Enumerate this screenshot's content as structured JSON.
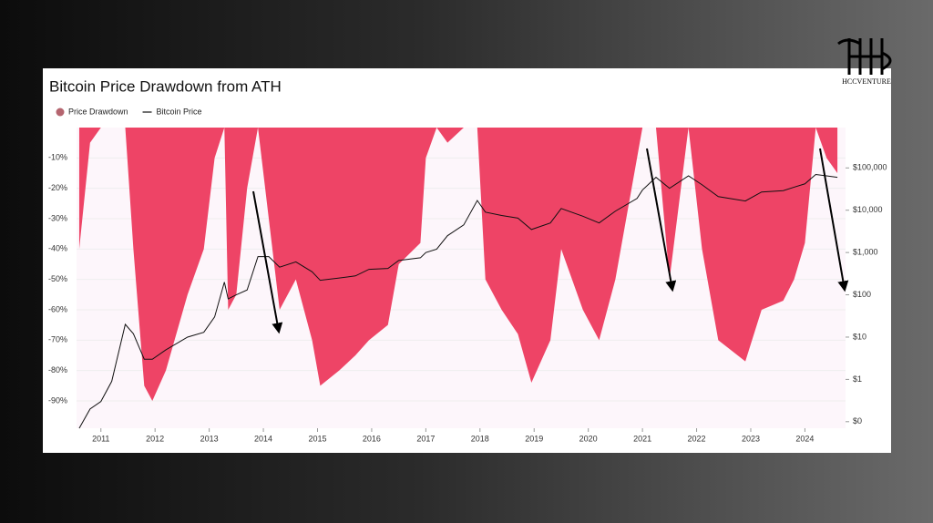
{
  "watermark": "HCCVENTURE",
  "chart_data": {
    "type": "drawdown-area-line",
    "title": "Bitcoin Price Drawdown from ATH",
    "x": [
      2010.6,
      2010.8,
      2011.0,
      2011.2,
      2011.45,
      2011.6,
      2011.8,
      2011.95,
      2012.2,
      2012.6,
      2012.9,
      2013.1,
      2013.28,
      2013.35,
      2013.5,
      2013.7,
      2013.9,
      2014.1,
      2014.3,
      2014.6,
      2014.9,
      2015.05,
      2015.4,
      2015.7,
      2015.95,
      2016.3,
      2016.5,
      2016.9,
      2017.0,
      2017.2,
      2017.4,
      2017.7,
      2017.95,
      2018.1,
      2018.4,
      2018.7,
      2018.95,
      2019.3,
      2019.5,
      2019.9,
      2020.2,
      2020.5,
      2020.9,
      2021.0,
      2021.25,
      2021.5,
      2021.85,
      2022.1,
      2022.4,
      2022.9,
      2023.2,
      2023.6,
      2023.8,
      2024.0,
      2024.2,
      2024.4,
      2024.6
    ],
    "series": [
      {
        "name": "Price Drawdown",
        "color": "#ee4466",
        "legend_color": "#b5656f",
        "kind": "area",
        "values": [
          -40,
          -5,
          0,
          0,
          0,
          -40,
          -85,
          -90,
          -80,
          -55,
          -40,
          -10,
          0,
          -60,
          -55,
          -20,
          0,
          -30,
          -60,
          -50,
          -70,
          -85,
          -80,
          -75,
          -70,
          -65,
          -45,
          -38,
          -10,
          0,
          -5,
          0,
          0,
          -50,
          -60,
          -68,
          -84,
          -70,
          -40,
          -60,
          -70,
          -50,
          -10,
          0,
          0,
          -50,
          0,
          -40,
          -70,
          -77,
          -60,
          -57,
          -50,
          -38,
          0,
          -10,
          -15
        ]
      },
      {
        "name": "Bitcoin Price",
        "color": "#111111",
        "kind": "line",
        "axis": "y2",
        "values": [
          0.07,
          0.2,
          0.3,
          0.9,
          20,
          12,
          3,
          3,
          5,
          10,
          13,
          30,
          200,
          80,
          100,
          130,
          800,
          800,
          450,
          600,
          350,
          220,
          250,
          280,
          400,
          420,
          650,
          750,
          1000,
          1200,
          2500,
          4500,
          17000,
          9000,
          7500,
          6500,
          3500,
          5000,
          11000,
          7200,
          5000,
          9500,
          19000,
          30000,
          60000,
          33000,
          65000,
          40000,
          21000,
          16500,
          27000,
          29000,
          35000,
          42000,
          70000,
          65000,
          60000
        ]
      }
    ],
    "xlim": [
      2010.55,
      2024.75
    ],
    "xticks": [
      2011,
      2012,
      2013,
      2014,
      2015,
      2016,
      2017,
      2018,
      2019,
      2020,
      2021,
      2022,
      2023,
      2024
    ],
    "ylim": [
      -99,
      0
    ],
    "yticks": [
      {
        "value": -10,
        "label": "-10%"
      },
      {
        "value": -20,
        "label": "-20%"
      },
      {
        "value": -30,
        "label": "-30%"
      },
      {
        "value": -40,
        "label": "-40%"
      },
      {
        "value": -50,
        "label": "-50%"
      },
      {
        "value": -60,
        "label": "-60%"
      },
      {
        "value": -70,
        "label": "-70%"
      },
      {
        "value": -80,
        "label": "-80%"
      },
      {
        "value": -90,
        "label": "-90%"
      }
    ],
    "y2lim": [
      0.07,
      900000
    ],
    "y2log": true,
    "y2ticks": [
      {
        "value": 0.1,
        "label": "$0"
      },
      {
        "value": 1,
        "label": "$1"
      },
      {
        "value": 10,
        "label": "$10"
      },
      {
        "value": 100,
        "label": "$100"
      },
      {
        "value": 1000,
        "label": "$1,000"
      },
      {
        "value": 10000,
        "label": "$10,000"
      },
      {
        "value": 100000,
        "label": "$100,000"
      }
    ],
    "grid": true
  }
}
